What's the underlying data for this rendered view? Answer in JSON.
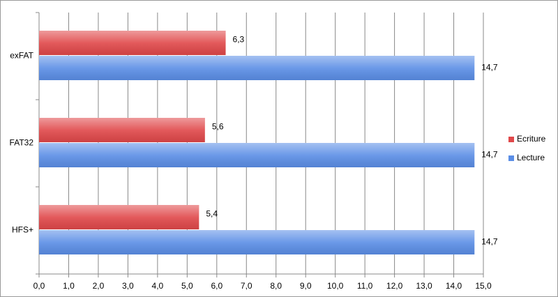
{
  "chart_data": {
    "type": "hbar",
    "categories": [
      "exFAT",
      "FAT32",
      "HFS+"
    ],
    "series": [
      {
        "name": "Ecriture",
        "color": "#e0484a",
        "values": [
          6.3,
          5.6,
          5.4
        ],
        "value_labels": [
          "6,3",
          "5,6",
          "5,4"
        ]
      },
      {
        "name": "Lecture",
        "color": "#5b8ee6",
        "values": [
          14.7,
          14.7,
          14.7
        ],
        "value_labels": [
          "14,7",
          "14,7",
          "14,7"
        ]
      }
    ],
    "xlim": [
      0,
      15
    ],
    "xticks": [
      {
        "value": 0,
        "label": "0,0"
      },
      {
        "value": 1,
        "label": "1,0"
      },
      {
        "value": 2,
        "label": "2,0"
      },
      {
        "value": 3,
        "label": "3,0"
      },
      {
        "value": 4,
        "label": "4,0"
      },
      {
        "value": 5,
        "label": "5,0"
      },
      {
        "value": 6,
        "label": "6,0"
      },
      {
        "value": 7,
        "label": "7,0"
      },
      {
        "value": 8,
        "label": "8,0"
      },
      {
        "value": 9,
        "label": "9,0"
      },
      {
        "value": 10,
        "label": "10,0"
      },
      {
        "value": 11,
        "label": "11,0"
      },
      {
        "value": 12,
        "label": "12,0"
      },
      {
        "value": 13,
        "label": "13,0"
      },
      {
        "value": 14,
        "label": "14,0"
      },
      {
        "value": 15,
        "label": "15,0"
      }
    ],
    "grid": true,
    "legend": "right"
  }
}
